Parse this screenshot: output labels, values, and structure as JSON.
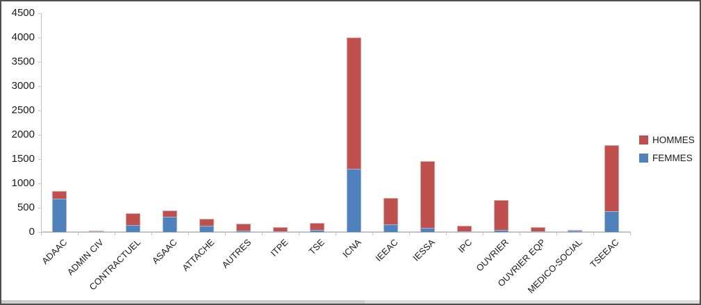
{
  "chart_data": {
    "type": "bar",
    "stacked": true,
    "title": "",
    "xlabel": "",
    "ylabel": "",
    "categories": [
      "ADAAC",
      "ADMIN CIV",
      "CONTRACTUEL",
      "ASAAC",
      "ATTACHE",
      "AUTRES",
      "ITPE",
      "TSE",
      "ICNA",
      "IEEAC",
      "IESSA",
      "IPC",
      "OUVRIER",
      "OUVRIER EQP",
      "MEDICO-SOCIAL",
      "TSEEAC"
    ],
    "series": [
      {
        "name": "FEMMES",
        "color": "#4f81bd",
        "values": [
          690,
          15,
          145,
          320,
          135,
          25,
          20,
          40,
          1300,
          160,
          90,
          20,
          45,
          10,
          35,
          430
        ]
      },
      {
        "name": "HOMMES",
        "color": "#c0504d",
        "values": [
          160,
          20,
          245,
          130,
          135,
          145,
          80,
          150,
          2700,
          540,
          1370,
          110,
          615,
          80,
          10,
          1350
        ]
      }
    ],
    "ylim": [
      0,
      4500
    ],
    "ytick_interval": 500,
    "yticks": [
      0,
      500,
      1000,
      1500,
      2000,
      2500,
      3000,
      3500,
      4000,
      4500
    ],
    "grid": false,
    "legend_position": "right"
  },
  "legend": {
    "items": [
      {
        "label": "HOMMES",
        "color": "#c0504d"
      },
      {
        "label": "FEMMES",
        "color": "#4f81bd"
      }
    ]
  }
}
